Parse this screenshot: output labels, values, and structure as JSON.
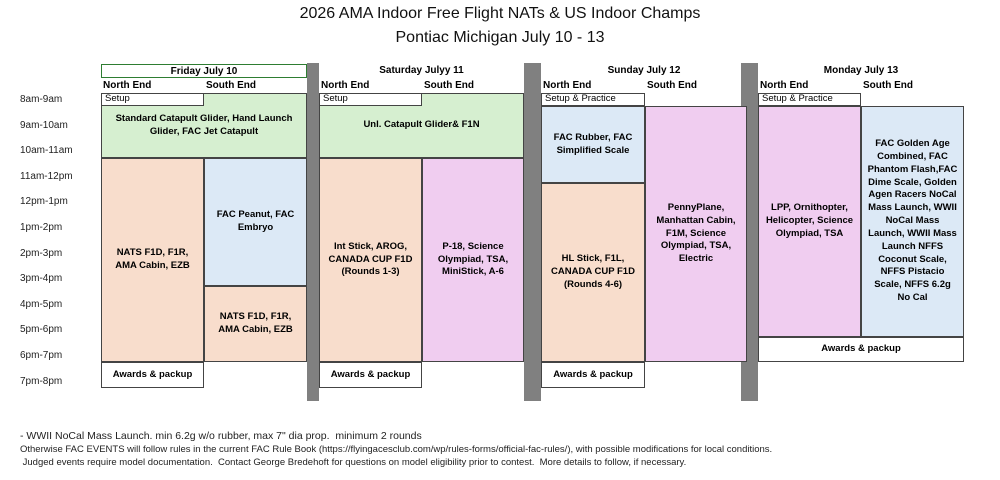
{
  "title": [
    "2026 AMA Indoor Free Flight NATs & US Indoor Champs",
    "Pontiac Michigan July 10 - 13"
  ],
  "times": [
    "8am-9am",
    "9am-10am",
    "10am-11am",
    "11am-12pm",
    "12pm-1pm",
    "1pm-2pm",
    "2pm-3pm",
    "3pm-4pm",
    "4pm-5pm",
    "5pm-6pm",
    "6pm-7pm",
    "7pm-8pm"
  ],
  "days": [
    {
      "header": "Friday July 10",
      "north": "North End",
      "south": "South End",
      "blocks": [
        "Standard Catapult Glider, Hand Launch Glider, FAC Jet Catapult",
        "Setup",
        "NATS F1D, F1R, AMA Cabin, EZB",
        "FAC Peanut, FAC Embryo",
        "NATS F1D, F1R, AMA Cabin, EZB",
        "Awards & packup"
      ]
    },
    {
      "header": "Saturday Julyy 11",
      "north": "North End",
      "south": "South End",
      "blocks": [
        "Unl. Catapult Glider& F1N",
        "Setup",
        "Int Stick, AROG, CANADA CUP F1D (Rounds 1-3)",
        "P-18, Science Olympiad, TSA, MiniStick, A-6",
        "Awards & packup"
      ]
    },
    {
      "header": "Sunday July 12",
      "north": "North End",
      "south": "South End",
      "blocks": [
        "Setup & Practice",
        "FAC Rubber, FAC Simplified Scale",
        "HL Stick, F1L, CANADA CUP F1D (Rounds 4-6)",
        "PennyPlane, Manhattan Cabin, F1M, Science Olympiad, TSA, Electric",
        "Awards & packup"
      ]
    },
    {
      "header": "Monday July 13",
      "north": "North End",
      "south": "South End",
      "blocks": [
        "Setup & Practice",
        "LPP, Ornithopter, Helicopter, Science Olympiad, TSA",
        "FAC Golden Age Combined, FAC Phantom Flash,FAC Dime Scale, Golden Agen Racers NoCal Mass Launch, WWII NoCal Mass Launch, WWII Mass Launch NFFS Coconut Scale, NFFS Pistacio Scale, NFFS 6.2g No Cal",
        "Awards & packup"
      ]
    }
  ],
  "notes": [
    "- WWII NoCal Mass Launch. min 6.2g w/o rubber, max 7\" dia prop.  minimum 2 rounds",
    "Otherwise FAC EVENTS will follow rules in the current FAC Rule Book (https://flyingacesclub.com/wp/rules-forms/official-fac-rules/), with possible modifications for local conditions.",
    " Judged events require model documentation.  Contact George Bredehoft for questions on model eligibility prior to contest.  More details to follow, if necessary."
  ]
}
